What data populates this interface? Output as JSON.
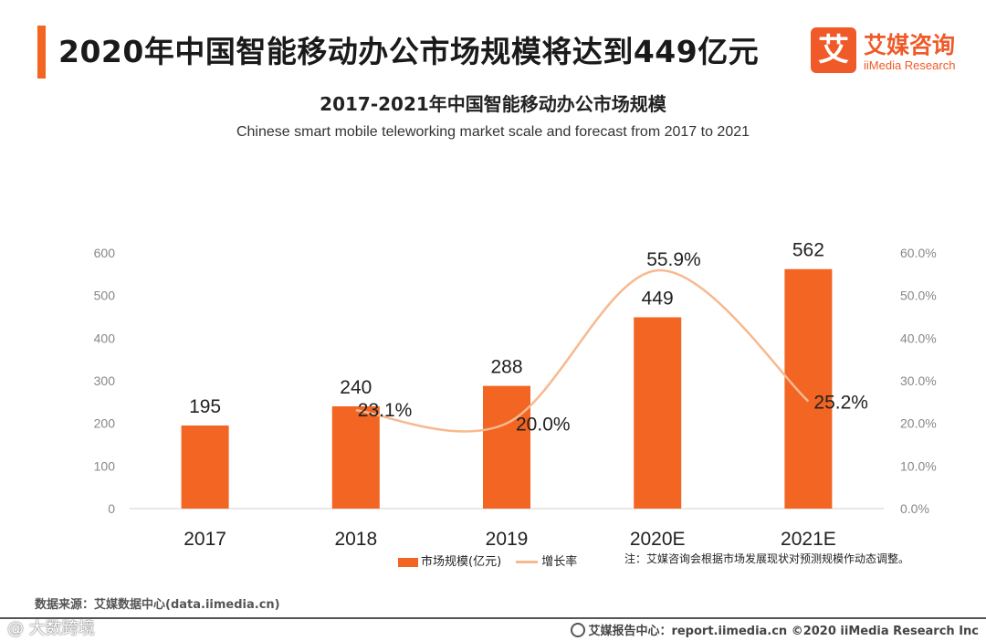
{
  "header": {
    "title": "2020年中国智能移动办公市场规模将达到449亿元",
    "logo_mark": "艾",
    "logo_cn": "艾媒咨询",
    "logo_en": "iiMedia Research"
  },
  "colors": {
    "accent": "#f26522",
    "bar": "#f26522",
    "line": "#f7b98f",
    "axis_text": "#888888"
  },
  "chart_data": {
    "type": "bar",
    "title": "2017-2021年中国智能移动办公市场规模",
    "subtitle": "Chinese smart mobile teleworking market scale and forecast from 2017 to 2021",
    "categories": [
      "2017",
      "2018",
      "2019",
      "2020E",
      "2021E"
    ],
    "series": [
      {
        "name": "市场规模(亿元)",
        "type": "bar",
        "axis": "left",
        "values": [
          195,
          240,
          288,
          449,
          562
        ],
        "labels": [
          "195",
          "240",
          "288",
          "449",
          "562"
        ]
      },
      {
        "name": "增长率",
        "type": "line",
        "axis": "right",
        "values": [
          null,
          23.1,
          20.0,
          55.9,
          25.2
        ],
        "labels": [
          "",
          "23.1%",
          "20.0%",
          "55.9%",
          "25.2%"
        ]
      }
    ],
    "ylim": [
      0,
      600
    ],
    "yticks": [
      "0",
      "100",
      "200",
      "300",
      "400",
      "500",
      "600"
    ],
    "y2lim": [
      0,
      60
    ],
    "y2ticks": [
      "0.0%",
      "10.0%",
      "20.0%",
      "30.0%",
      "40.0%",
      "50.0%",
      "60.0%"
    ],
    "grid": false,
    "legend_position": "bottom"
  },
  "note": "注：艾媒咨询会根据市场发展现状对预测规模作动态调整。",
  "source": "数据来源：艾媒数据中心(data.iimedia.cn)",
  "watermark": "@ 大数跨境",
  "footer": {
    "report": "艾媒报告中心：report.iimedia.cn  ©2020  iiMedia Research  Inc"
  }
}
